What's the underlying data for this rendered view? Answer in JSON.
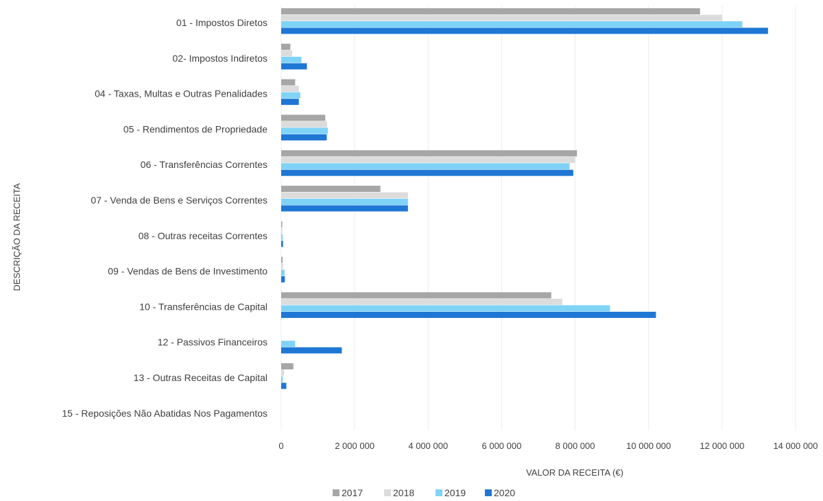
{
  "chart_data": {
    "type": "bar",
    "orientation": "horizontal",
    "title": "",
    "xlabel": "VALOR DA RECEITA (€)",
    "ylabel": "DESCRIÇÃO DA RECEITA",
    "xlim": [
      0,
      14000000
    ],
    "x_ticks": [
      0,
      2000000,
      4000000,
      6000000,
      8000000,
      10000000,
      12000000,
      14000000
    ],
    "x_tick_labels": [
      "0",
      "2 000 000",
      "4 000 000",
      "6 000 000",
      "8 000 000",
      "10 000 000",
      "12 000 000",
      "14 000 000"
    ],
    "grid": true,
    "legend_position": "bottom",
    "categories": [
      "01  - Impostos Diretos",
      "02- Impostos Indiretos",
      "04 - Taxas, Multas e Outras Penalidades",
      "05 - Rendimentos de Propriedade",
      "06 - Transferências Correntes",
      "07 - Venda de Bens e Serviços Correntes",
      "08 - Outras receitas Correntes",
      "09 - Vendas de Bens de Investimento",
      "10 - Transferências de Capital",
      "12 - Passivos Financeiros",
      "13 - Outras Receitas de Capital",
      "15 - Reposições Não Abatidas Nos Pagamentos"
    ],
    "series": [
      {
        "name": "2017",
        "color": "#a6a6a6",
        "values": [
          11400000,
          250000,
          380000,
          1200000,
          8050000,
          2700000,
          30000,
          40000,
          7350000,
          0,
          330000,
          0
        ]
      },
      {
        "name": "2018",
        "color": "#dcdcdc",
        "values": [
          12000000,
          300000,
          480000,
          1250000,
          8000000,
          3450000,
          30000,
          50000,
          7650000,
          0,
          80000,
          0
        ]
      },
      {
        "name": "2019",
        "color": "#7fd3f7",
        "values": [
          12550000,
          550000,
          520000,
          1270000,
          7850000,
          3450000,
          40000,
          90000,
          8950000,
          380000,
          40000,
          0
        ]
      },
      {
        "name": "2020",
        "color": "#1f77d4",
        "values": [
          13250000,
          700000,
          480000,
          1240000,
          7950000,
          3450000,
          50000,
          100000,
          10200000,
          1650000,
          140000,
          0
        ]
      }
    ]
  }
}
